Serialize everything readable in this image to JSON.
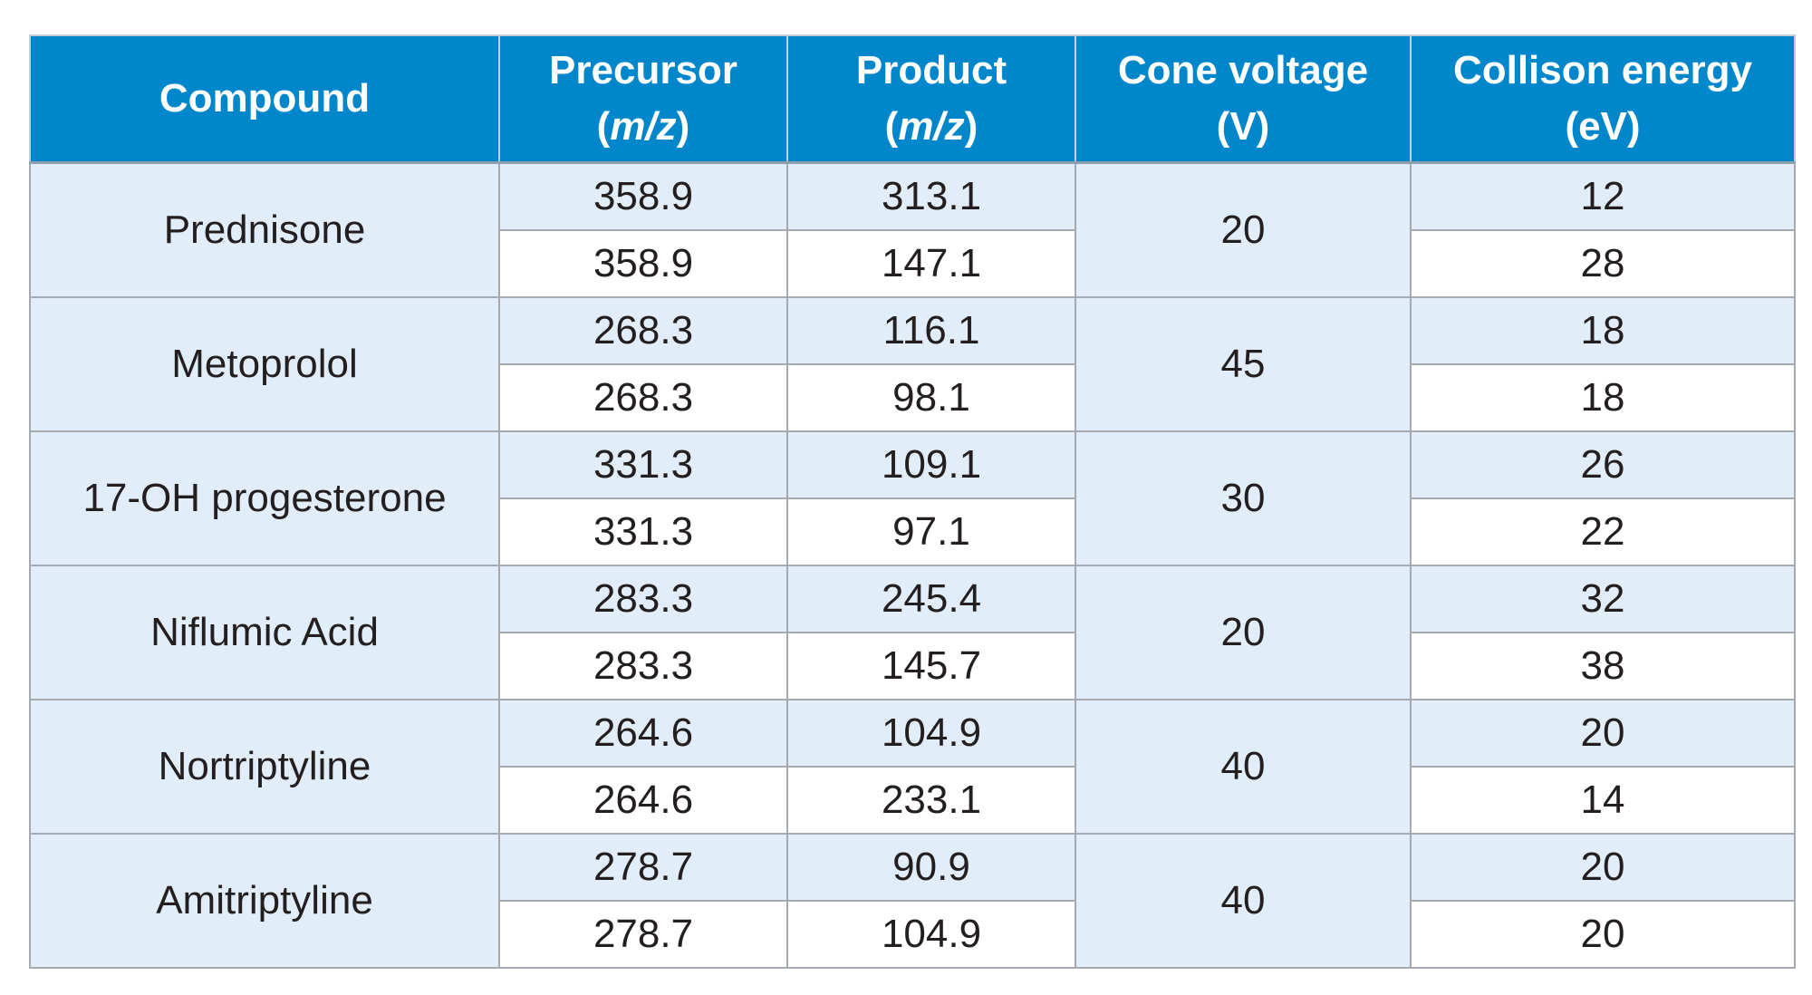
{
  "table": {
    "headers": {
      "compound": "Compound",
      "precursor": {
        "line1": "Precursor",
        "line2_open": "(",
        "line2_unit": "m/z",
        "line2_close": ")"
      },
      "product": {
        "line1": "Product",
        "line2_open": "(",
        "line2_unit": "m/z",
        "line2_close": ")"
      },
      "cone_voltage": {
        "line1": "Cone voltage",
        "line2": "(V)"
      },
      "collision_energy": {
        "line1": "Collison energy",
        "line2": "(eV)"
      }
    },
    "rows": [
      {
        "compound": "Prednisone",
        "cone_voltage": "20",
        "transitions": [
          {
            "precursor": "358.9",
            "product": "313.1",
            "collision_energy": "12"
          },
          {
            "precursor": "358.9",
            "product": "147.1",
            "collision_energy": "28"
          }
        ]
      },
      {
        "compound": "Metoprolol",
        "cone_voltage": "45",
        "transitions": [
          {
            "precursor": "268.3",
            "product": "116.1",
            "collision_energy": "18"
          },
          {
            "precursor": "268.3",
            "product": "98.1",
            "collision_energy": "18"
          }
        ]
      },
      {
        "compound": "17-OH progesterone",
        "cone_voltage": "30",
        "transitions": [
          {
            "precursor": "331.3",
            "product": "109.1",
            "collision_energy": "26"
          },
          {
            "precursor": "331.3",
            "product": "97.1",
            "collision_energy": "22"
          }
        ]
      },
      {
        "compound": "Niflumic Acid",
        "cone_voltage": "20",
        "transitions": [
          {
            "precursor": "283.3",
            "product": "245.4",
            "collision_energy": "32"
          },
          {
            "precursor": "283.3",
            "product": "145.7",
            "collision_energy": "38"
          }
        ]
      },
      {
        "compound": "Nortriptyline",
        "cone_voltage": "40",
        "transitions": [
          {
            "precursor": "264.6",
            "product": "104.9",
            "collision_energy": "20"
          },
          {
            "precursor": "264.6",
            "product": "233.1",
            "collision_energy": "14"
          }
        ]
      },
      {
        "compound": "Amitriptyline",
        "cone_voltage": "40",
        "transitions": [
          {
            "precursor": "278.7",
            "product": "90.9",
            "collision_energy": "20"
          },
          {
            "precursor": "278.7",
            "product": "104.9",
            "collision_energy": "20"
          }
        ]
      }
    ]
  },
  "colors": {
    "header_bg": "#0086cb",
    "header_text": "#ffffff",
    "row_shaded": "#e1edf8",
    "row_plain": "#ffffff",
    "body_text": "#231f20"
  }
}
